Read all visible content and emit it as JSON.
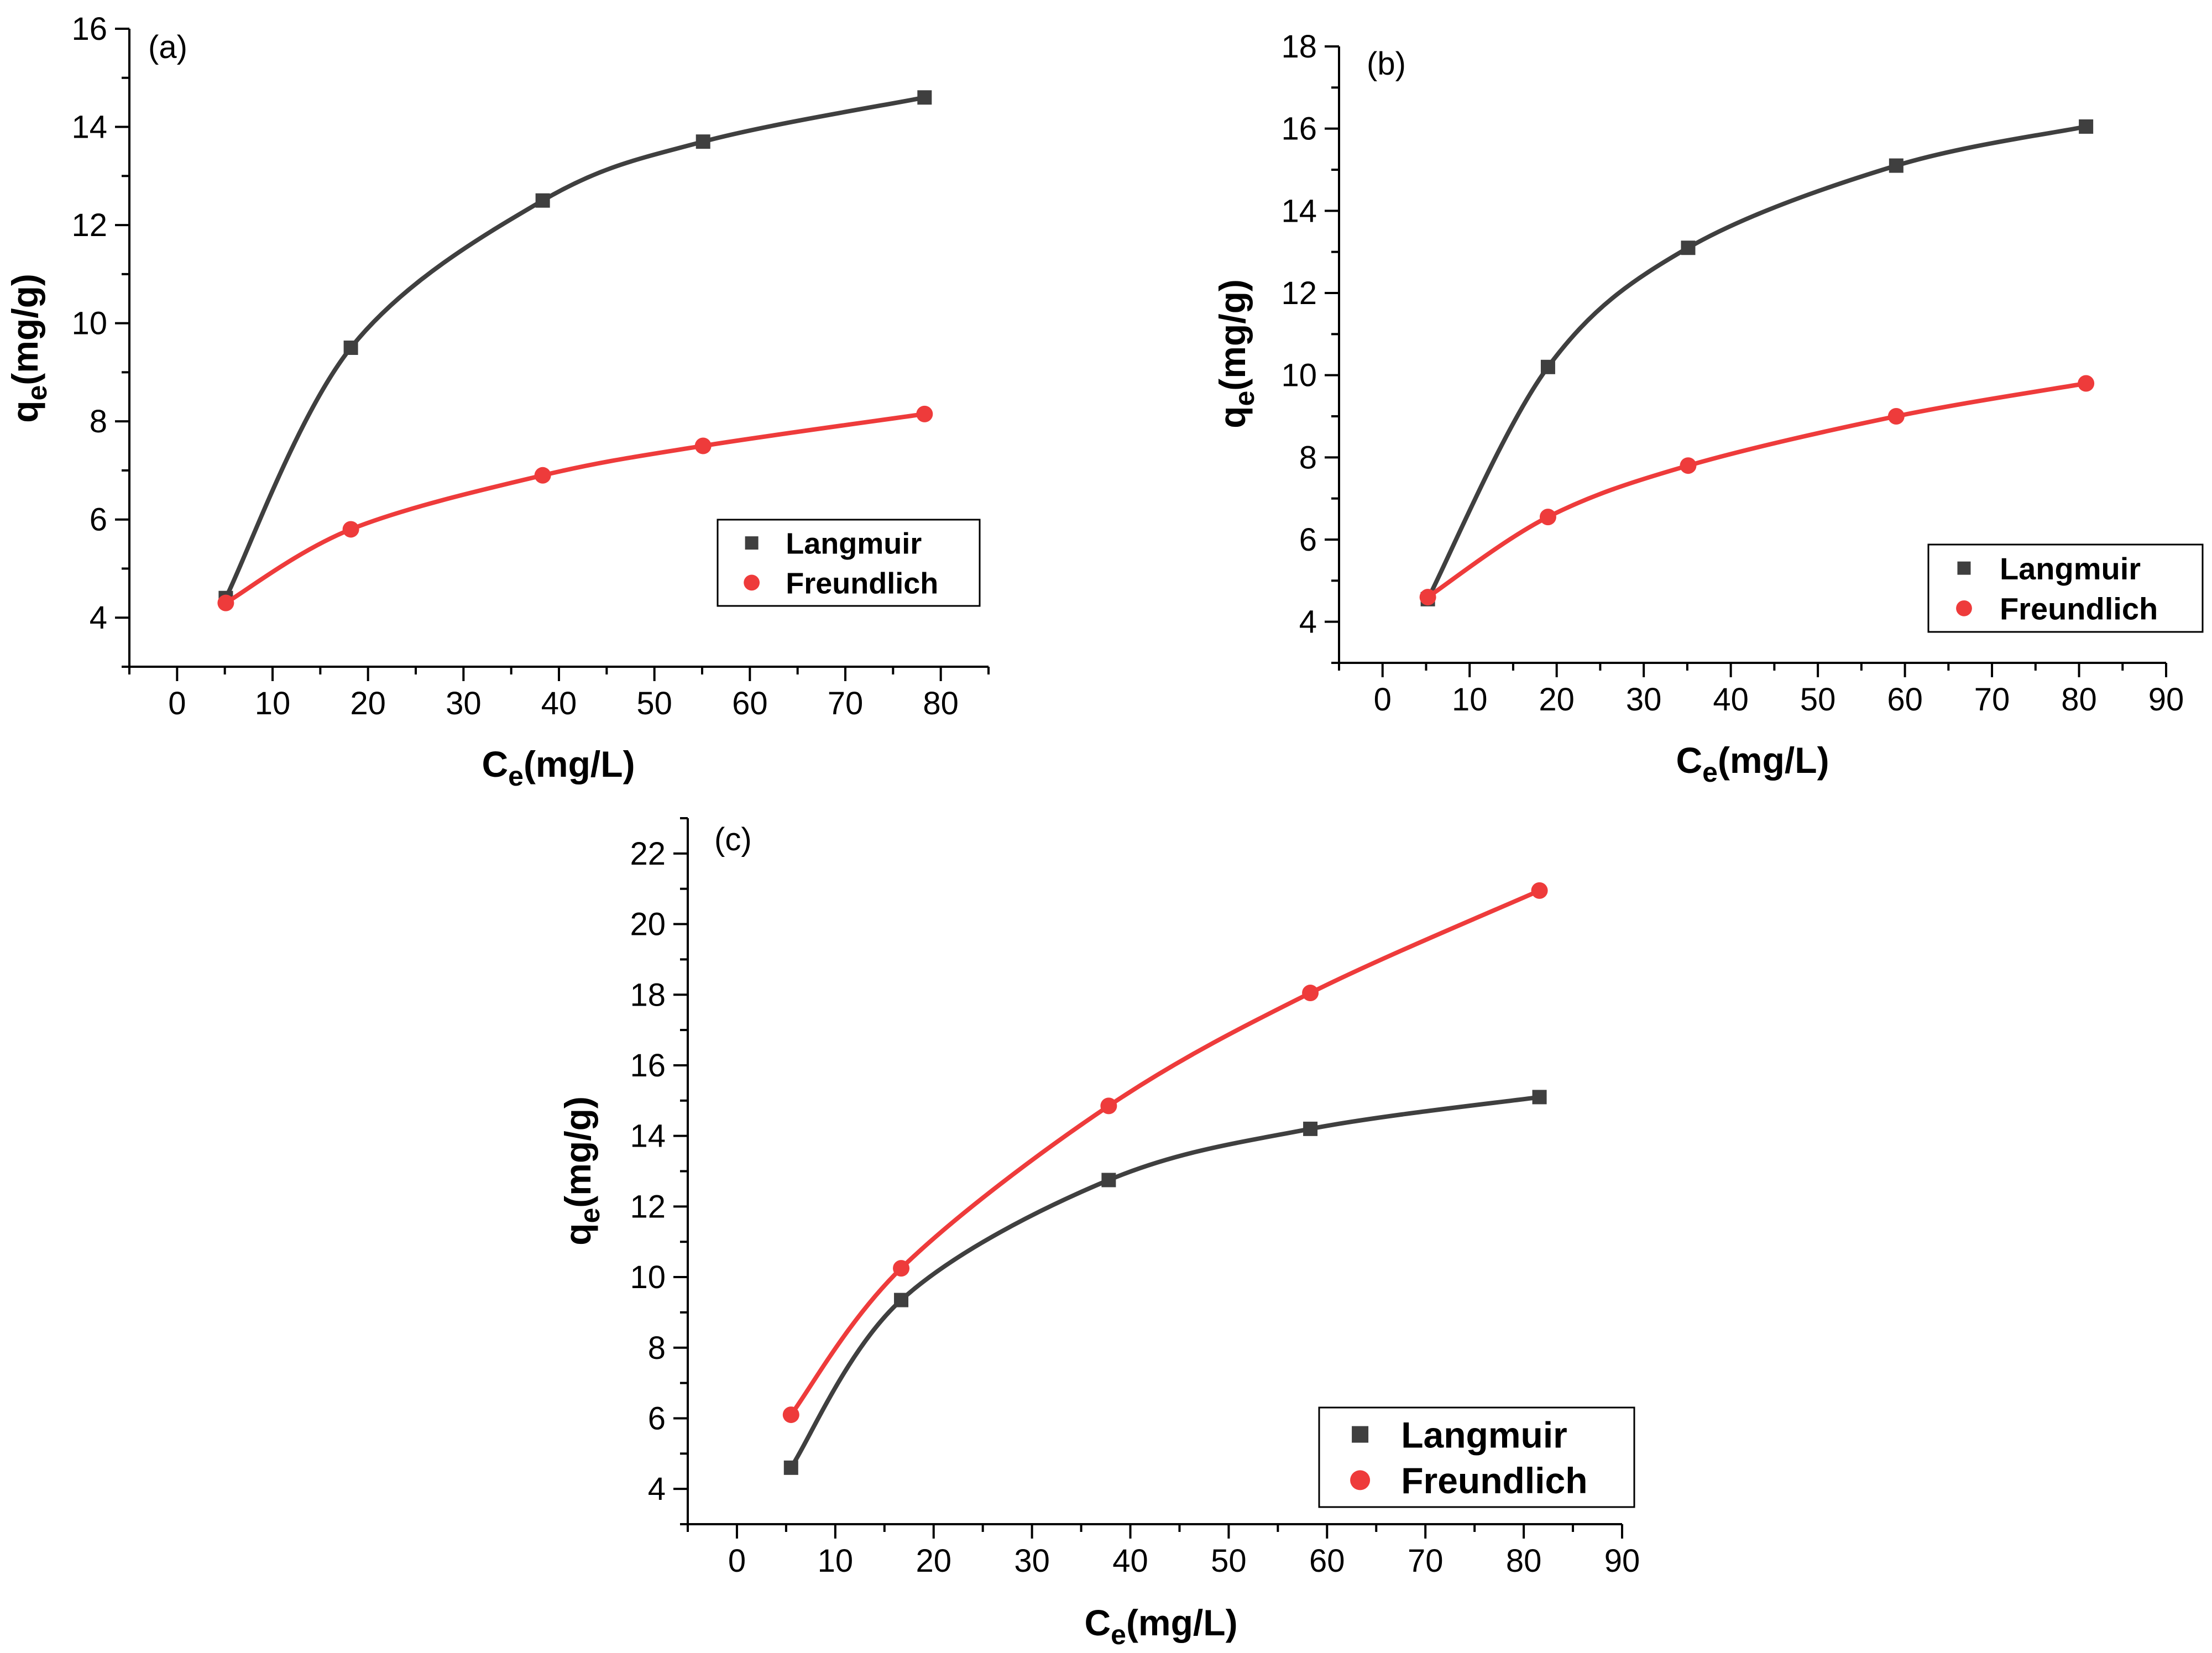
{
  "chart_data": [
    {
      "type": "line",
      "panel": "(a)",
      "xlabel": "C",
      "xlabel_sub": "e",
      "xlabel_unit": "(mg/L)",
      "ylabel": "q",
      "ylabel_sub": "e",
      "ylabel_unit": "(mg/g)",
      "xlim": [
        -5,
        85
      ],
      "ylim": [
        3,
        16
      ],
      "xticks": [
        "0",
        "10",
        "20",
        "30",
        "40",
        "50",
        "60",
        "70",
        "80"
      ],
      "yticks": [
        "4",
        "6",
        "8",
        "10",
        "12",
        "14",
        "16"
      ],
      "legend_position": "bottom-right",
      "series": [
        {
          "name": "Langmuir",
          "color": "#3f3f3f",
          "marker": "square",
          "x": [
            5.1,
            18.2,
            38.3,
            55.1,
            78.3
          ],
          "y": [
            4.4,
            9.5,
            12.5,
            13.7,
            14.6
          ]
        },
        {
          "name": "Freundlich",
          "color": "#ee3b3b",
          "marker": "circle",
          "x": [
            5.1,
            18.2,
            38.3,
            55.1,
            78.3
          ],
          "y": [
            4.3,
            5.8,
            6.9,
            7.5,
            8.15
          ]
        }
      ]
    },
    {
      "type": "line",
      "panel": "(b)",
      "xlabel": "C",
      "xlabel_sub": "e",
      "xlabel_unit": "(mg/L)",
      "ylabel": "q",
      "ylabel_sub": "e",
      "ylabel_unit": "(mg/g)",
      "xlim": [
        -5,
        90
      ],
      "ylim": [
        3,
        18
      ],
      "xticks": [
        "0",
        "10",
        "20",
        "30",
        "40",
        "50",
        "60",
        "70",
        "80",
        "90"
      ],
      "yticks": [
        "4",
        "6",
        "8",
        "10",
        "12",
        "14",
        "16",
        "18"
      ],
      "legend_position": "bottom-right",
      "series": [
        {
          "name": "Langmuir",
          "color": "#3f3f3f",
          "marker": "square",
          "x": [
            5.2,
            19.0,
            35.1,
            59.0,
            80.8
          ],
          "y": [
            4.55,
            10.2,
            13.1,
            15.1,
            16.05
          ]
        },
        {
          "name": "Freundlich",
          "color": "#ee3b3b",
          "marker": "circle",
          "x": [
            5.2,
            19.0,
            35.1,
            59.0,
            80.8
          ],
          "y": [
            4.6,
            6.55,
            7.8,
            9.0,
            9.8
          ]
        }
      ]
    },
    {
      "type": "line",
      "panel": "(c)",
      "xlabel": "C",
      "xlabel_sub": "e",
      "xlabel_unit": "(mg/L)",
      "ylabel": "q",
      "ylabel_sub": "e",
      "ylabel_unit": "(mg/g)",
      "xlim": [
        -5,
        90
      ],
      "ylim": [
        3,
        23
      ],
      "xticks": [
        "0",
        "10",
        "20",
        "30",
        "40",
        "50",
        "60",
        "70",
        "80",
        "90"
      ],
      "yticks": [
        "4",
        "6",
        "8",
        "10",
        "12",
        "14",
        "16",
        "18",
        "20",
        "22"
      ],
      "legend_position": "bottom-right",
      "series": [
        {
          "name": "Langmuir",
          "color": "#3f3f3f",
          "marker": "square",
          "x": [
            5.5,
            16.7,
            37.8,
            58.3,
            81.6
          ],
          "y": [
            4.6,
            9.35,
            12.75,
            14.2,
            15.1
          ]
        },
        {
          "name": "Freundlich",
          "color": "#ee3b3b",
          "marker": "circle",
          "x": [
            5.5,
            16.7,
            37.8,
            58.3,
            81.6
          ],
          "y": [
            6.1,
            10.25,
            14.85,
            18.05,
            20.95
          ]
        }
      ]
    }
  ]
}
